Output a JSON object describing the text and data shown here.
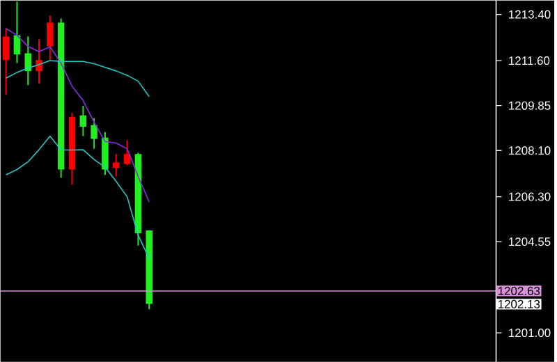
{
  "chart_data": {
    "type": "candlestick",
    "categories": [
      null,
      null,
      null,
      null,
      null,
      null,
      null,
      null,
      null,
      null,
      null,
      null,
      null,
      null,
      null,
      null,
      null,
      null,
      null,
      null,
      null,
      null,
      null,
      null,
      null,
      null,
      null,
      null,
      null,
      null,
      null,
      null,
      null,
      null,
      null,
      null,
      null,
      null,
      null,
      null,
      null,
      null,
      null,
      null,
      null
    ],
    "ohlc": [
      [
        1211.62,
        1212.86,
        1210.27,
        1212.54
      ],
      [
        1212.59,
        1213.9,
        1211.51,
        1211.84
      ],
      [
        1211.89,
        1212.54,
        1210.65,
        1211.19
      ],
      [
        1211.19,
        1212.43,
        1210.7,
        1211.62
      ],
      [
        1212.16,
        1213.35,
        1211.62,
        1213.08
      ],
      [
        1213.08,
        1213.24,
        1207.04,
        1207.36
      ],
      [
        1207.36,
        1209.57,
        1206.77,
        1209.41
      ],
      [
        1209.47,
        1209.84,
        1208.66,
        1209.03
      ],
      [
        1209.09,
        1209.36,
        1208.17,
        1208.55
      ],
      [
        1208.6,
        1208.82,
        1207.15,
        1207.36
      ],
      [
        1207.42,
        1207.96,
        1207.09,
        1207.63
      ],
      [
        1207.58,
        1208.49,
        1207.52,
        1207.96
      ],
      [
        1207.96,
        1208.01,
        1204.4,
        1204.88
      ],
      [
        1204.99,
        1204.99,
        1201.92,
        1202.13
      ],
      null,
      null,
      null,
      null,
      null,
      null,
      null,
      null,
      null,
      null,
      null,
      null,
      null,
      null,
      null,
      null,
      null,
      null,
      null,
      null,
      null,
      null,
      null,
      null,
      null,
      null,
      null,
      null,
      null,
      null,
      null
    ],
    "colors": [
      "#ff0000",
      "#22ee22",
      "#22ee22",
      "#ff0000",
      "#ff0000",
      "#22ee22",
      "#ff0000",
      "#22ee22",
      "#22ee22",
      "#22ee22",
      "#ff0000",
      "#ff0000",
      "#22ee22",
      "#22ee22",
      null,
      null,
      null,
      null,
      null,
      null,
      null,
      null,
      null,
      null,
      null,
      null,
      null,
      null,
      null,
      null,
      null,
      null,
      null,
      null,
      null,
      null,
      null,
      null,
      null,
      null,
      null,
      null,
      null,
      null,
      null
    ],
    "series": [
      {
        "type": "line",
        "color": "#8a2be2",
        "values": [
          1212.85,
          1212.59,
          1212.15,
          1211.95,
          1212.14,
          1211.5,
          1210.6,
          1210.05,
          1209.2,
          1208.45,
          1208.39,
          1208.17,
          1207.09,
          1206.1,
          null,
          null,
          null,
          null,
          null,
          null,
          null,
          null,
          null,
          null,
          null,
          null,
          null,
          null,
          null,
          null,
          null,
          null,
          null,
          null,
          null,
          null,
          null,
          null,
          null,
          null,
          null,
          null,
          null,
          null,
          null
        ]
      },
      {
        "type": "line",
        "color": "#20c8c8",
        "values": [
          1210.92,
          1211.14,
          1211.31,
          1211.45,
          1211.6,
          1211.57,
          1211.57,
          1211.57,
          1211.48,
          1211.34,
          1211.2,
          1211.03,
          1210.8,
          1210.2,
          null,
          null,
          null,
          null,
          null,
          null,
          null,
          null,
          null,
          null,
          null,
          null,
          null,
          null,
          null,
          null,
          null,
          null,
          null,
          null,
          null,
          null,
          null,
          null,
          null,
          null,
          null,
          null,
          null,
          null,
          null
        ]
      },
      {
        "type": "line",
        "color": "#20c8c8",
        "values": [
          1207.15,
          1207.36,
          1207.66,
          1208.13,
          1208.66,
          1208.12,
          1208.12,
          1208.13,
          1207.75,
          1207.45,
          1206.9,
          1206.3,
          1204.8,
          1203.9,
          null,
          null,
          null,
          null,
          null,
          null,
          null,
          null,
          null,
          null,
          null,
          null,
          null,
          null,
          null,
          null,
          null,
          null,
          null,
          null,
          null,
          null,
          null,
          null,
          null,
          null,
          null,
          null,
          null,
          null,
          null
        ]
      }
    ],
    "ylim": [
      1199.87,
      1213.94
    ],
    "yticks": [
      {
        "value": 1213.4,
        "label": "1213.40"
      },
      {
        "value": 1211.6,
        "label": "1211.60"
      },
      {
        "value": 1209.85,
        "label": "1209.85"
      },
      {
        "value": 1208.1,
        "label": "1208.10"
      },
      {
        "value": 1206.3,
        "label": "1206.30"
      },
      {
        "value": 1204.55,
        "label": "1204.55"
      },
      {
        "value": 1201.0,
        "label": "1201.00"
      }
    ],
    "tick_labels": "y",
    "ref_lines": [
      {
        "axis": "y",
        "value": 1202.63,
        "label": "1202.63",
        "color": "#d890d8"
      }
    ],
    "annotations": [
      "1202.13"
    ]
  }
}
